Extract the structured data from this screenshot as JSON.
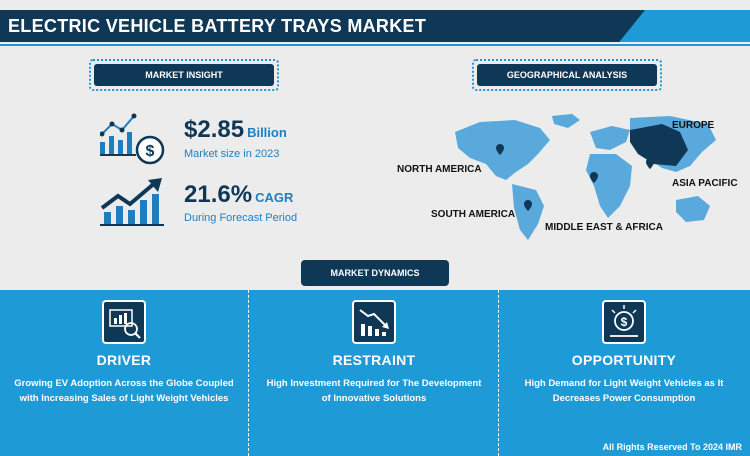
{
  "header": {
    "title": "ELECTRIC VEHICLE BATTERY TRAYS MARKET"
  },
  "insight": {
    "label": "MARKET INSIGHT",
    "market_size": {
      "value": "$2.85",
      "unit": "Billion",
      "caption": "Market size in 2023",
      "icon": "chart-dollar-icon"
    },
    "cagr": {
      "value": "21.6%",
      "unit": "CAGR",
      "caption": "During Forecast Period",
      "icon": "growth-arrow-icon"
    }
  },
  "geo": {
    "label": "GEOGRAPHICAL ANALYSIS",
    "regions": [
      "NORTH AMERICA",
      "SOUTH AMERICA",
      "EUROPE",
      "ASIA PACIFIC",
      "MIDDLE EAST & AFRICA"
    ]
  },
  "dynamics": {
    "label": "MARKET DYNAMICS",
    "panels": [
      {
        "title": "DRIVER",
        "text": "Growing EV Adoption Across the Globe Coupled with Increasing Sales of Light Weight Vehicles",
        "icon": "analytics-magnifier-icon"
      },
      {
        "title": "RESTRAINT",
        "text": "High Investment Required for The Development of Innovative Solutions",
        "icon": "declining-chart-icon"
      },
      {
        "title": "OPPORTUNITY",
        "text": "High Demand for Light Weight Vehicles as It Decreases Power Consumption",
        "icon": "dollar-bulb-icon"
      }
    ]
  },
  "footer": "All Rights Reserved To 2024 IMR",
  "colors": {
    "navy": "#0f3857",
    "blue": "#1e9ad6",
    "accent": "#1e7fc0",
    "map": "#5aa9dc"
  }
}
